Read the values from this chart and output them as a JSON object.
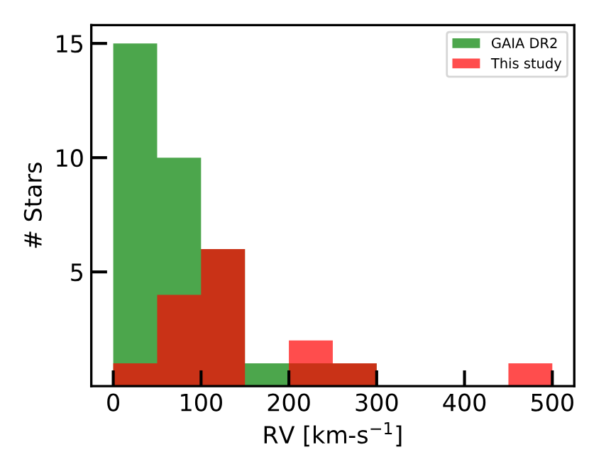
{
  "chart_data": {
    "type": "histogram",
    "xlabel": "RV [km-s$^{−1}$]",
    "ylabel": "# Stars",
    "bins": [
      0,
      50,
      100,
      150,
      200,
      250,
      300,
      350,
      400,
      450,
      500
    ],
    "series": [
      {
        "name": "GAIA DR2",
        "color": "#4ca64c",
        "values": [
          15,
          10,
          6,
          1,
          1,
          1,
          0,
          0,
          0,
          0
        ]
      },
      {
        "name": "This study",
        "color": "#ff4d4d",
        "values": [
          1,
          4,
          6,
          0,
          2,
          1,
          0,
          0,
          0,
          1
        ]
      }
    ],
    "xlim": [
      -25,
      525
    ],
    "ylim": [
      0,
      15.8
    ],
    "xticks": [
      0,
      100,
      200,
      300,
      400,
      500
    ],
    "yticks": [
      5,
      10,
      15
    ],
    "legend": "top right",
    "grid": false
  }
}
